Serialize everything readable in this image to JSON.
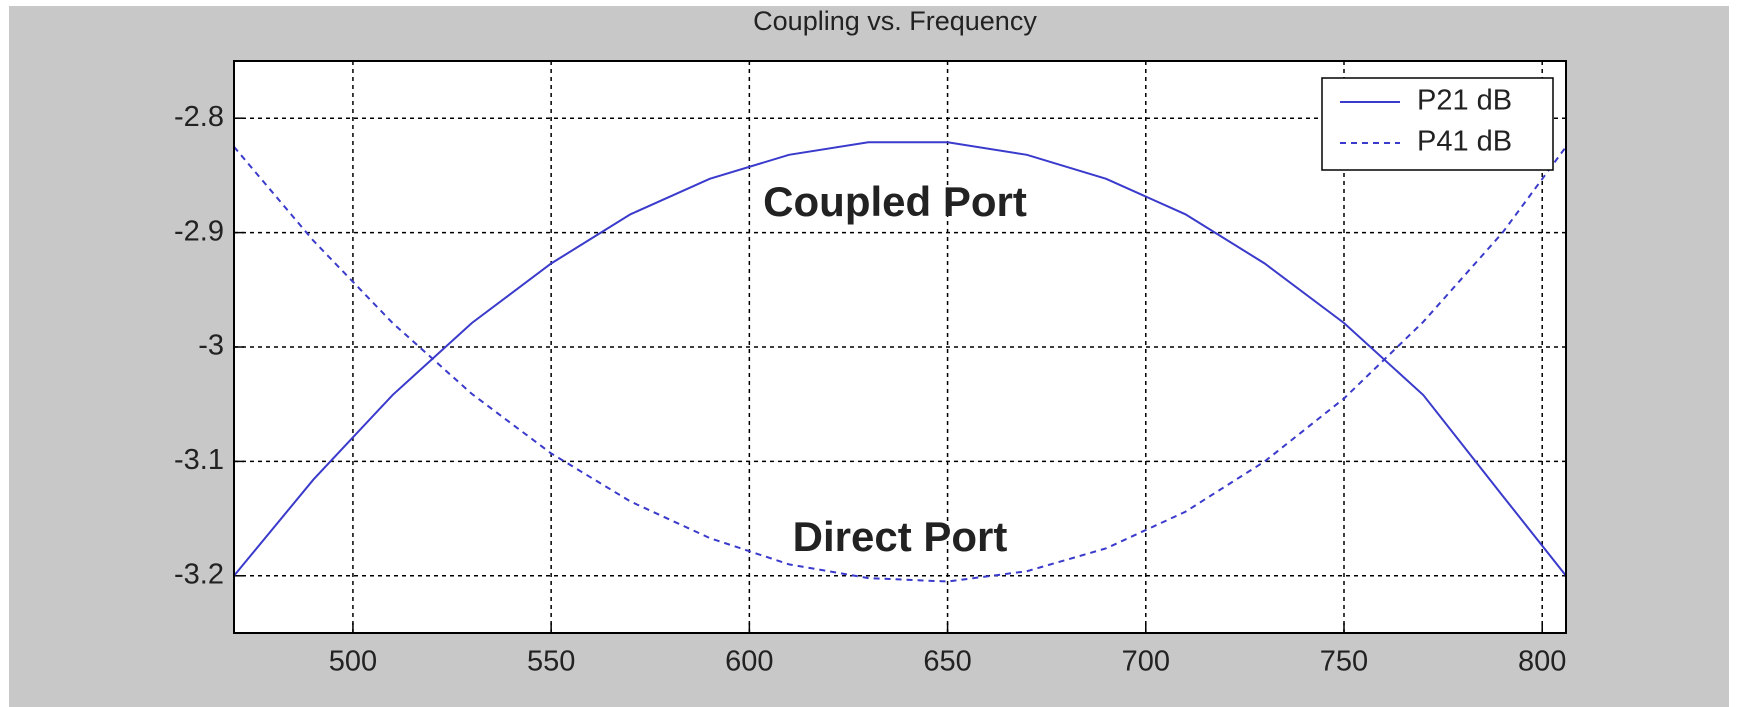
{
  "chart_data": {
    "type": "line",
    "title": "Coupling vs. Frequency",
    "annotations": [
      "Coupled Port",
      "Direct Port"
    ],
    "x": [
      470,
      490,
      510,
      530,
      550,
      570,
      590,
      610,
      630,
      650,
      670,
      690,
      710,
      730,
      750,
      770,
      790,
      806
    ],
    "series": [
      {
        "name": "P21 dB",
        "color": "#3a3acc",
        "linestyle": "solid",
        "values": [
          -3.2,
          -3.116,
          -3.042,
          -2.979,
          -2.927,
          -2.884,
          -2.853,
          -2.832,
          -2.821,
          -2.821,
          -2.832,
          -2.853,
          -2.884,
          -2.927,
          -2.979,
          -3.042,
          -3.13,
          -3.2
        ]
      },
      {
        "name": "P41 dB",
        "color": "#3a3acc",
        "linestyle": "dashed",
        "values": [
          -2.825,
          -2.907,
          -2.979,
          -3.041,
          -3.093,
          -3.135,
          -3.167,
          -3.19,
          -3.202,
          -3.205,
          -3.196,
          -3.176,
          -3.144,
          -3.1,
          -3.045,
          -2.978,
          -2.9,
          -2.825
        ]
      }
    ],
    "xlim": [
      470,
      806
    ],
    "xticks": [
      500,
      550,
      600,
      650,
      700,
      750,
      800
    ],
    "ylim": [
      -3.25,
      -2.75
    ],
    "yticks": [
      -2.8,
      -2.9,
      -3,
      -3.1,
      -3.2
    ],
    "grid": true,
    "legend": "upper right"
  }
}
